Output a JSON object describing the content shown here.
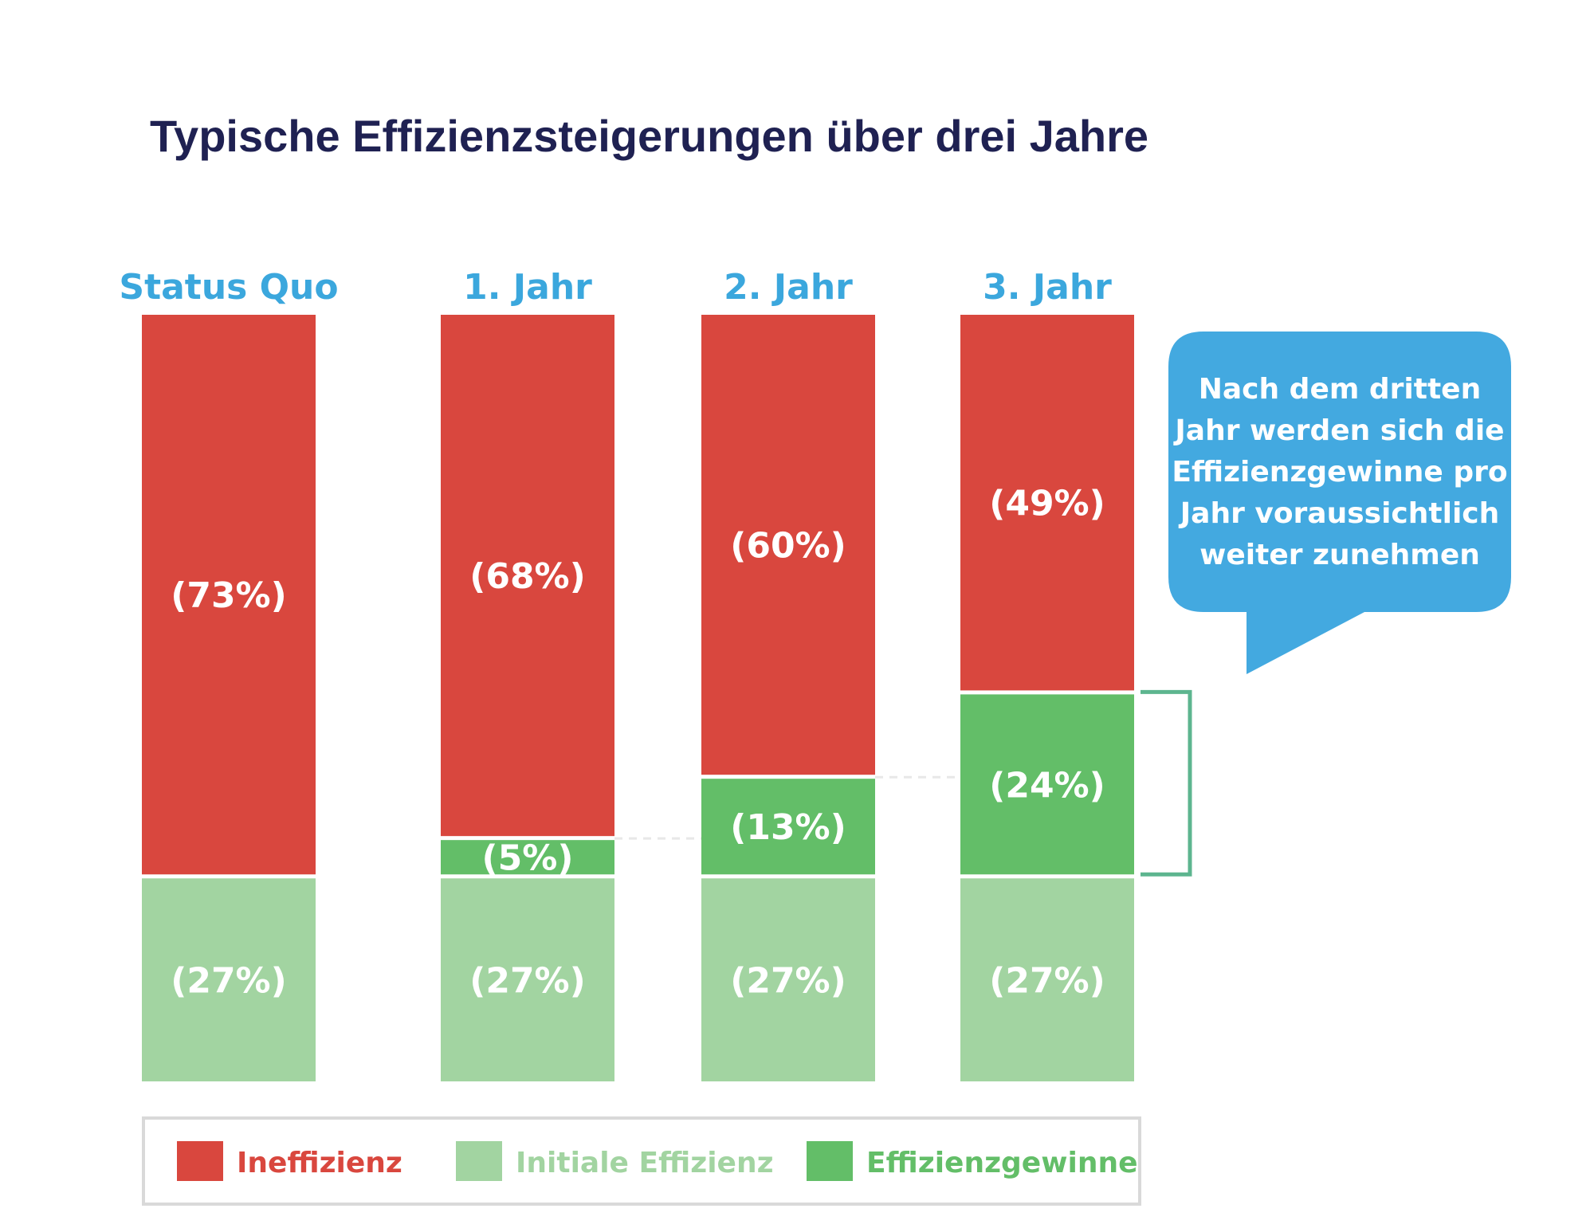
{
  "colors": {
    "title": "#1f2152",
    "column_label": "#3ba7dd",
    "ineffizienz": "#d9473e",
    "initiale": "#a2d4a1",
    "gewinne": "#63be68",
    "bracket": "#5db58f",
    "bubble": "#43a9e0",
    "legend_border": "#d9d9d9",
    "dashed": "#e8e8e8"
  },
  "chart_data": {
    "type": "bar",
    "stacked": true,
    "title": "Typische Effizienzsteigerungen über drei Jahre",
    "categories": [
      "Status Quo",
      "1. Jahr",
      "2. Jahr",
      "3. Jahr"
    ],
    "series": [
      {
        "key": "initiale",
        "name": "Initiale Effizienz",
        "values": [
          27,
          27,
          27,
          27
        ],
        "labels": [
          "(27%)",
          "(27%)",
          "(27%)",
          "(27%)"
        ]
      },
      {
        "key": "gewinne",
        "name": "Effizienzgewinne",
        "values": [
          0,
          5,
          13,
          24
        ],
        "labels": [
          "",
          "(5%)",
          "(13%)",
          "(24%)"
        ]
      },
      {
        "key": "ineffizienz",
        "name": "Ineffizienz",
        "values": [
          73,
          68,
          60,
          49
        ],
        "labels": [
          "(73%)",
          "(68%)",
          "(60%)",
          "(49%)"
        ]
      }
    ],
    "legend": [
      {
        "key": "ineffizienz",
        "label": "Ineffizienz"
      },
      {
        "key": "initiale",
        "label": "Initiale Effizienz"
      },
      {
        "key": "gewinne",
        "label": "Effizienzgewinne"
      }
    ],
    "legend_position": "bottom",
    "ylim": [
      0,
      100
    ],
    "annotation": {
      "lines": [
        "Nach dem dritten",
        "Jahr werden sich die",
        "Effizienzgewinne pro",
        "Jahr voraussichtlich",
        "weiter zunehmen"
      ]
    }
  }
}
